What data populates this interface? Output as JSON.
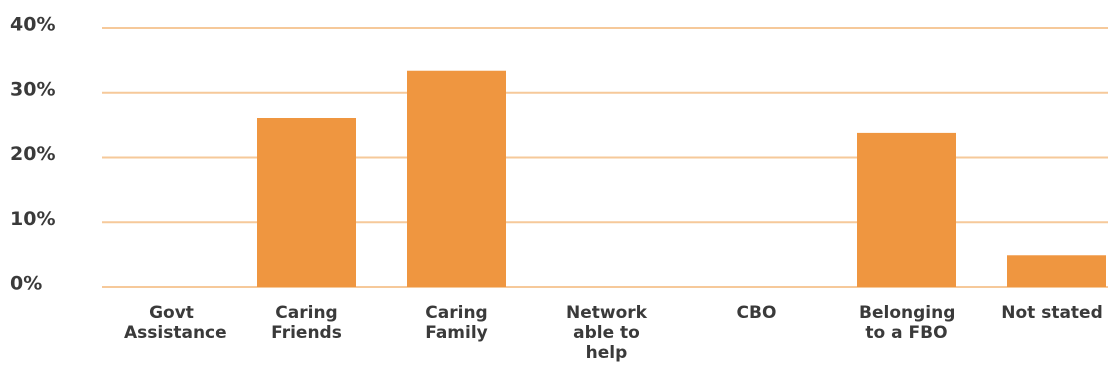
{
  "chart_data": {
    "type": "bar",
    "categories": [
      "Govt Assistance",
      "Caring Friends",
      "Caring Family",
      "Network able to help",
      "CBO",
      "Belonging to a FBO",
      "Not stated"
    ],
    "values": [
      0,
      26.1,
      33.4,
      0,
      0,
      23.8,
      4.9
    ],
    "color": "#ef9640",
    "ylim": [
      0,
      40
    ],
    "yticks": [
      {
        "value": 0,
        "label": "0%"
      },
      {
        "value": 10,
        "label": "10%"
      },
      {
        "value": 20,
        "label": "20%"
      },
      {
        "value": 30,
        "label": "30%"
      },
      {
        "value": 40,
        "label": "40%"
      }
    ],
    "grid": true
  }
}
